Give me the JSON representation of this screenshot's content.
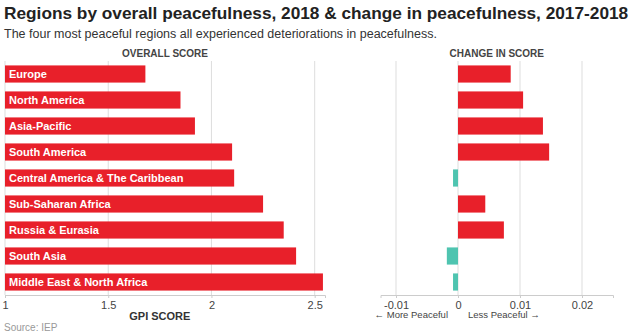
{
  "title": "Regions by overall peacefulness, 2018 & change in peacefulness, 2017-2018",
  "subtitle": "The four most peaceful regions all experienced deteriorations in peacefulness.",
  "source": "Source: IEP",
  "chart_data": [
    {
      "type": "bar",
      "orientation": "horizontal",
      "title": "OVERALL SCORE",
      "x_label": "GPI SCORE",
      "categories": [
        "Europe",
        "North America",
        "Asia-Pacific",
        "South America",
        "Central America & The Caribbean",
        "Sub-Saharan Africa",
        "Russia & Eurasia",
        "South Asia",
        "Middle East & North Africa"
      ],
      "values": [
        1.68,
        1.85,
        1.92,
        2.1,
        2.11,
        2.25,
        2.35,
        2.41,
        2.54
      ],
      "color": "#e8202a",
      "xlim": [
        1,
        2.55
      ],
      "xticks": [
        1,
        1.5,
        2,
        2.5
      ],
      "grid": true
    },
    {
      "type": "bar",
      "orientation": "horizontal",
      "title": "CHANGE IN SCORE",
      "annotations": [
        "← More Peaceful",
        "Less Peaceful →"
      ],
      "values": [
        0.0085,
        0.0105,
        0.0137,
        0.0147,
        -0.0008,
        0.0044,
        0.0074,
        -0.0018,
        -0.0008
      ],
      "colors": [
        "#e8202a",
        "#e8202a",
        "#e8202a",
        "#e8202a",
        "#4fc4b0",
        "#e8202a",
        "#e8202a",
        "#4fc4b0",
        "#4fc4b0"
      ],
      "xlim": [
        -0.0125,
        0.025
      ],
      "xticks": [
        -0.01,
        0,
        0.01,
        0.02
      ],
      "grid": true
    }
  ]
}
